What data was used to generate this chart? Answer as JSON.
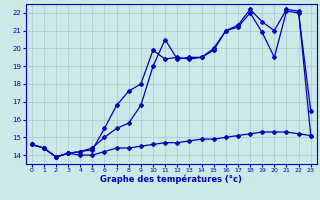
{
  "title": "Graphe des températures (°c)",
  "background_color": "#cce8e8",
  "grid_color": "#aacece",
  "line_color": "#0000bb",
  "xlim": [
    -0.5,
    23.5
  ],
  "ylim": [
    13.5,
    22.5
  ],
  "xticks": [
    0,
    1,
    2,
    3,
    4,
    5,
    6,
    7,
    8,
    9,
    10,
    11,
    12,
    13,
    14,
    15,
    16,
    17,
    18,
    19,
    20,
    21,
    22,
    23
  ],
  "yticks": [
    14,
    15,
    16,
    17,
    18,
    19,
    20,
    21,
    22
  ],
  "line1_x": [
    0,
    1,
    2,
    3,
    4,
    5,
    6,
    7,
    8,
    9,
    10,
    11,
    12,
    13,
    14,
    15,
    16,
    17,
    18,
    19,
    20,
    21,
    22,
    23
  ],
  "line1_y": [
    14.6,
    14.4,
    13.9,
    14.1,
    14.0,
    14.0,
    14.2,
    14.4,
    14.4,
    14.5,
    14.6,
    14.7,
    14.7,
    14.8,
    14.9,
    14.9,
    15.0,
    15.1,
    15.2,
    15.3,
    15.3,
    15.3,
    15.2,
    15.1
  ],
  "line2_x": [
    0,
    1,
    2,
    3,
    4,
    5,
    6,
    7,
    8,
    9,
    10,
    11,
    12,
    13,
    14,
    15,
    16,
    17,
    18,
    19,
    20,
    21,
    22,
    23
  ],
  "line2_y": [
    14.6,
    14.4,
    13.9,
    14.1,
    14.2,
    14.3,
    15.5,
    16.8,
    17.6,
    18.0,
    19.9,
    19.4,
    19.5,
    19.4,
    19.5,
    19.9,
    21.0,
    21.2,
    22.0,
    20.9,
    19.5,
    22.1,
    22.0,
    16.5
  ],
  "line3_x": [
    0,
    1,
    2,
    3,
    4,
    5,
    6,
    7,
    8,
    9,
    10,
    11,
    12,
    13,
    14,
    15,
    16,
    17,
    18,
    19,
    20,
    21,
    22,
    23
  ],
  "line3_y": [
    14.6,
    14.4,
    13.9,
    14.1,
    14.2,
    14.4,
    15.0,
    15.5,
    15.8,
    16.8,
    19.0,
    20.5,
    19.4,
    19.5,
    19.5,
    20.0,
    21.0,
    21.3,
    22.2,
    21.5,
    21.0,
    22.2,
    22.1,
    15.1
  ]
}
